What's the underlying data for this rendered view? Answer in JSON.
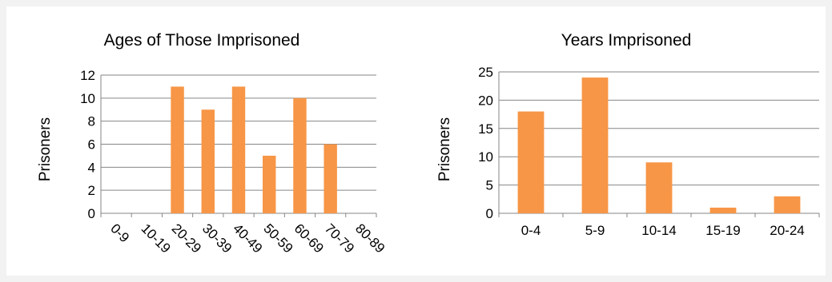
{
  "chart_data": [
    {
      "type": "bar",
      "title": "Ages of Those Imprisoned",
      "xlabel": "",
      "ylabel": "Prisoners",
      "categories": [
        "0-9",
        "10-19",
        "20-29",
        "30-39",
        "40-49",
        "50-59",
        "60-69",
        "70-79",
        "80-89"
      ],
      "values": [
        0,
        0,
        11,
        9,
        11,
        5,
        10,
        6,
        0
      ],
      "ylim": [
        0,
        12
      ],
      "yticks": [
        "0",
        "2",
        "4",
        "6",
        "8",
        "10",
        "12"
      ],
      "grid": true,
      "bar_color": "#f79646",
      "grid_color": "#868686"
    },
    {
      "type": "bar",
      "title": "Years Imprisoned",
      "xlabel": "",
      "ylabel": "Prisoners",
      "categories": [
        "0-4",
        "5-9",
        "10-14",
        "15-19",
        "20-24"
      ],
      "values": [
        18,
        24,
        9,
        1,
        3
      ],
      "ylim": [
        0,
        25
      ],
      "yticks": [
        "0",
        "5",
        "10",
        "15",
        "20",
        "25"
      ],
      "grid": true,
      "bar_color": "#f79646",
      "grid_color": "#868686"
    }
  ]
}
